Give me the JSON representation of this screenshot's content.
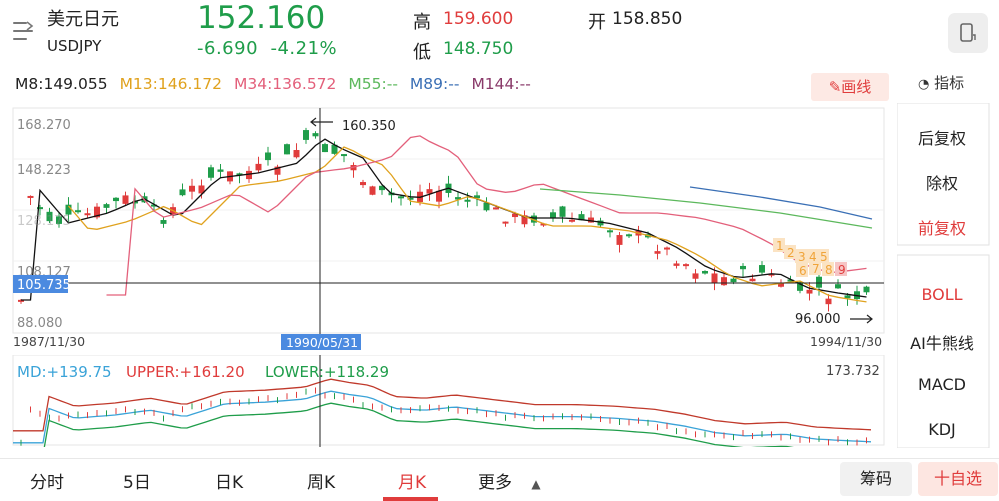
{
  "header": {
    "name": "美元日元",
    "code": "USDJPY",
    "price": "152.160",
    "change": "-6.690",
    "change_pct": "-4.21%",
    "high_label": "高",
    "high_value": "159.600",
    "low_label": "低",
    "low_value": "148.750",
    "open_label": "开",
    "open_value": "158.850"
  },
  "ma_legend": [
    {
      "text": "M8:149.055",
      "color": "#222222"
    },
    {
      "text": "M13:146.172",
      "color": "#e0a21e"
    },
    {
      "text": "M34:136.572",
      "color": "#e3607b"
    },
    {
      "text": "M55:--",
      "color": "#5cb85c"
    },
    {
      "text": "M89:--",
      "color": "#3a6fb5"
    },
    {
      "text": "M144:--",
      "color": "#8a3a6a"
    }
  ],
  "draw_button": "画线",
  "indicator_label": "指标",
  "sidebar": {
    "items": [
      {
        "label": "后复权",
        "active": false
      },
      {
        "label": "除权",
        "active": false
      },
      {
        "label": "前复权",
        "active": true
      },
      {
        "label": "BOLL",
        "active": true
      },
      {
        "label": "AI牛熊线",
        "active": false
      },
      {
        "label": "MACD",
        "active": false
      },
      {
        "label": "KDJ",
        "active": false
      }
    ]
  },
  "chart": {
    "y_ticks": [
      "168.270",
      "148.223",
      "108.127",
      "88.080"
    ],
    "y_tick_hidden": "128.175",
    "crosshair_value": "105.735",
    "crosshair_date": "1990/05/31",
    "start_date": "1987/11/30",
    "end_date": "1994/11/30",
    "max_label": "160.350",
    "min_label": "96.000",
    "signals": [
      "1",
      "2",
      "3",
      "4",
      "5",
      "6",
      "7",
      "8",
      "9"
    ]
  },
  "boll": {
    "md": "MD:+139.75",
    "upper": "UPPER:+161.20",
    "lower": "LOWER:+118.29",
    "max": "173.732"
  },
  "bottom_tabs": [
    "分时",
    "5日",
    "日K",
    "周K",
    "月K",
    "更多"
  ],
  "active_tab": "月K",
  "chips_button": "筹码",
  "add_favorite_button": "十自选",
  "colors": {
    "up": "#e03c3c",
    "down": "#1f9d4a",
    "accent": "#e03c3c"
  }
}
